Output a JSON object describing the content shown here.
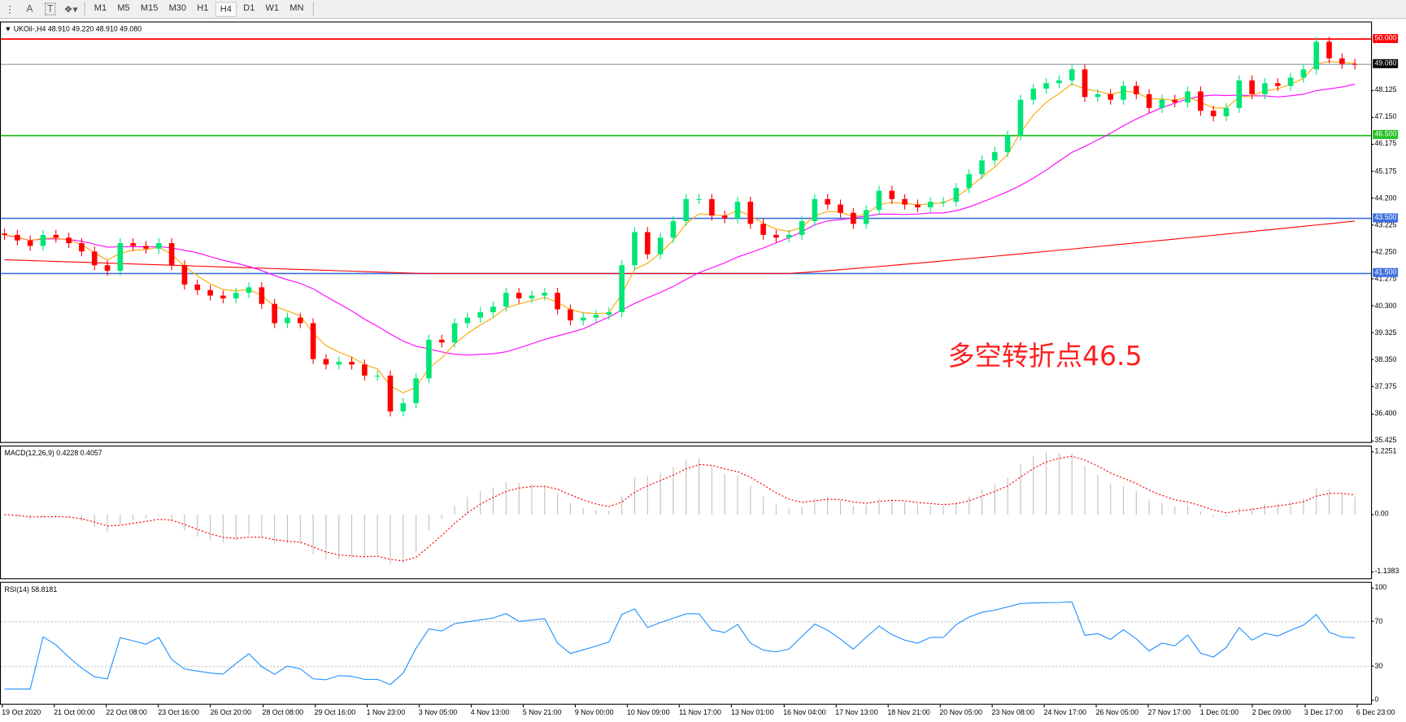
{
  "toolbar": {
    "icons": [
      "fibonacci-lines-icon",
      "text-icon",
      "text-label-icon",
      "shapes-icon"
    ],
    "text_icon": "A",
    "label_icon": "T",
    "timeframes": [
      "M1",
      "M5",
      "M15",
      "M30",
      "H1",
      "H4",
      "D1",
      "W1",
      "MN"
    ],
    "active_timeframe": "H4"
  },
  "chart": {
    "legend": "UKOil-,H4  48.910 49.220 48.910 49.080",
    "annotation": "多空转折点46.5",
    "price_ticks": [
      "48.125",
      "47.150",
      "46.175",
      "45.175",
      "44.200",
      "43.225",
      "42.250",
      "41.275",
      "40.300",
      "39.325",
      "38.350",
      "37.375",
      "36.400",
      "35.425"
    ],
    "levels": [
      {
        "value": 50.0,
        "label": "50.000",
        "color": "#ff0000"
      },
      {
        "value": 49.08,
        "label": "49.080",
        "color": "#000000",
        "line_color": "#8a98a8"
      },
      {
        "value": 46.5,
        "label": "46.500",
        "color": "#22c022"
      },
      {
        "value": 43.5,
        "label": "43.500",
        "color": "#3c6ee0"
      },
      {
        "value": 41.5,
        "label": "41.500",
        "color": "#3c6ee0"
      }
    ],
    "colors": {
      "bull": "#00e676",
      "bear": "#ff0000",
      "ma_fast": "#ffa500",
      "ma_mid": "#ff00ff",
      "ma_slow": "#ff0000"
    }
  },
  "chart_data": {
    "type": "candlestick",
    "symbol": "UKOil-",
    "timeframe": "H4",
    "ylim": [
      35.425,
      50.5
    ],
    "closes": [
      42.9,
      42.7,
      42.5,
      42.9,
      42.8,
      42.6,
      42.3,
      41.8,
      41.6,
      42.6,
      42.5,
      42.4,
      42.6,
      41.8,
      41.1,
      40.9,
      40.7,
      40.6,
      40.8,
      41.0,
      40.4,
      39.7,
      39.9,
      39.7,
      38.4,
      38.2,
      38.3,
      38.2,
      37.8,
      37.8,
      36.5,
      36.8,
      37.7,
      39.1,
      39.0,
      39.7,
      39.9,
      40.1,
      40.3,
      40.8,
      40.6,
      40.7,
      40.8,
      40.2,
      39.8,
      39.9,
      40.0,
      40.1,
      41.8,
      43.0,
      42.2,
      42.8,
      43.4,
      44.2,
      44.2,
      43.6,
      43.5,
      44.1,
      43.3,
      42.9,
      42.8,
      42.9,
      43.4,
      44.2,
      44.0,
      43.7,
      43.3,
      43.8,
      44.5,
      44.2,
      44.0,
      43.9,
      44.1,
      44.1,
      44.6,
      45.1,
      45.6,
      45.9,
      46.5,
      47.8,
      48.2,
      48.4,
      48.5,
      48.9,
      47.9,
      48.0,
      47.8,
      48.3,
      48.0,
      47.5,
      47.8,
      47.7,
      48.1,
      47.4,
      47.2,
      47.5,
      48.5,
      48.0,
      48.4,
      48.3,
      48.6,
      48.9,
      49.9,
      49.3,
      49.1,
      49.08
    ],
    "time_labels": [
      "19 Oct 2020",
      "21 Oct 00:00",
      "22 Oct 08:00",
      "23 Oct 16:00",
      "26 Oct 20:00",
      "28 Oct 08:00",
      "29 Oct 16:00",
      "1 Nov 23:00",
      "3 Nov 05:00",
      "4 Nov 13:00",
      "5 Nov 21:00",
      "9 Nov 00:00",
      "10 Nov 09:00",
      "11 Nov 17:00",
      "13 Nov 01:00",
      "16 Nov 04:00",
      "17 Nov 13:00",
      "18 Nov 21:00",
      "20 Nov 05:00",
      "23 Nov 08:00",
      "24 Nov 17:00",
      "26 Nov 05:00",
      "27 Nov 17:00",
      "1 Dec 01:00",
      "2 Dec 09:00",
      "3 Dec 17:00",
      "6 Dec 23:00"
    ],
    "macd": {
      "legend": "MACD(12,26,9) 0.4228 0.4057",
      "ticks": [
        "1.2251",
        "0.00",
        "-1.1383"
      ],
      "ylim": [
        -1.1383,
        1.2251
      ],
      "histogram_color": "#c0c0c0",
      "signal_color": "#ff0000"
    },
    "rsi": {
      "legend": "RSI(14) 58.8181",
      "ticks": [
        "100",
        "70",
        "30",
        "0"
      ],
      "levels": [
        70,
        30
      ],
      "ylim": [
        0,
        100
      ],
      "color": "#1e90ff"
    }
  }
}
